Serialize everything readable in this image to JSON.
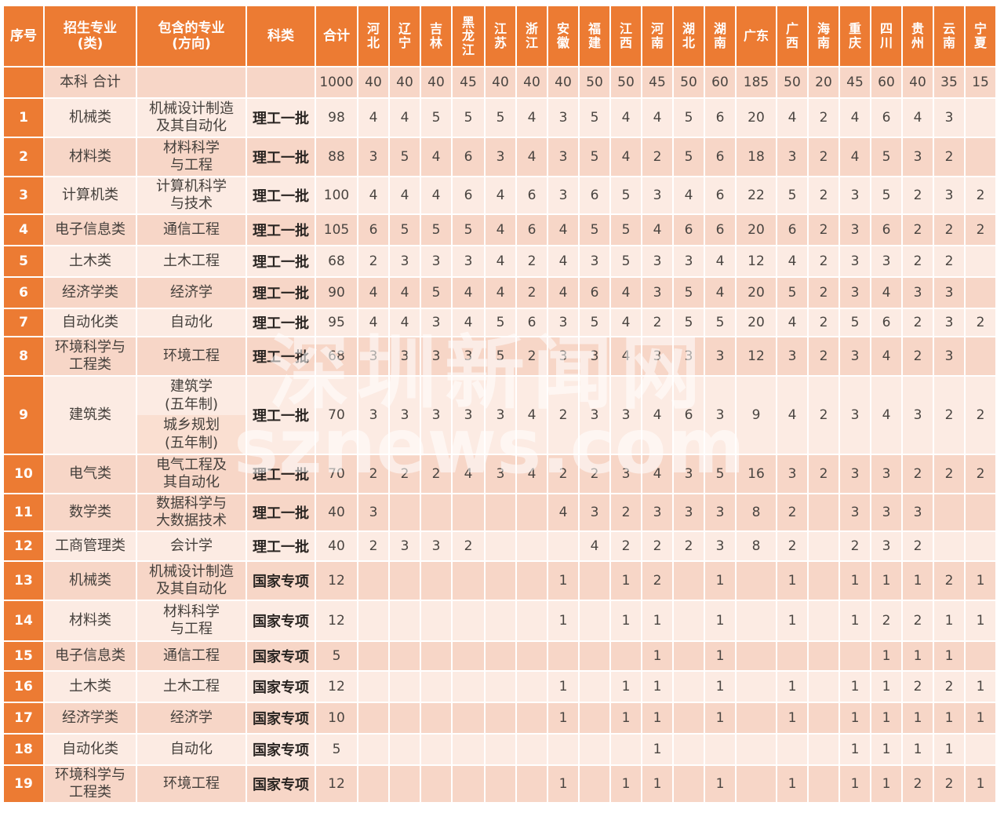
{
  "watermark": {
    "line1": "深圳新闻网",
    "line2": "sznews.com"
  },
  "table": {
    "columns": [
      {
        "key": "no",
        "label": "序号"
      },
      {
        "key": "major",
        "label": "招生专业\n(类)"
      },
      {
        "key": "sub",
        "label": "包含的专业\n(方向)"
      },
      {
        "key": "category",
        "label": "科类"
      },
      {
        "key": "total",
        "label": "合计"
      },
      {
        "key": "hebei",
        "label": "河\n北"
      },
      {
        "key": "liaoning",
        "label": "辽\n宁"
      },
      {
        "key": "jilin",
        "label": "吉\n林"
      },
      {
        "key": "heilongjiang",
        "label": "黑\n龙\n江"
      },
      {
        "key": "jiangsu",
        "label": "江\n苏"
      },
      {
        "key": "zhejiang",
        "label": "浙\n江"
      },
      {
        "key": "anhui",
        "label": "安\n徽"
      },
      {
        "key": "fujian",
        "label": "福\n建"
      },
      {
        "key": "jiangxi",
        "label": "江\n西"
      },
      {
        "key": "henan",
        "label": "河\n南"
      },
      {
        "key": "hubei",
        "label": "湖\n北"
      },
      {
        "key": "hunan",
        "label": "湖\n南"
      },
      {
        "key": "guangdong",
        "label": "广东"
      },
      {
        "key": "guangxi",
        "label": "广\n西"
      },
      {
        "key": "hainan",
        "label": "海\n南"
      },
      {
        "key": "chongqing",
        "label": "重\n庆"
      },
      {
        "key": "sichuan",
        "label": "四\n川"
      },
      {
        "key": "guizhou",
        "label": "贵\n州"
      },
      {
        "key": "yunnan",
        "label": "云\n南"
      },
      {
        "key": "ningxia",
        "label": "宁\n夏"
      }
    ],
    "summary": {
      "no": "",
      "major": "本科 合计",
      "sub": "",
      "category": "",
      "total": "1000",
      "values": [
        "40",
        "40",
        "40",
        "45",
        "40",
        "40",
        "40",
        "50",
        "50",
        "45",
        "50",
        "60",
        "185",
        "50",
        "20",
        "45",
        "60",
        "40",
        "35",
        "15"
      ]
    },
    "rows": [
      {
        "no": "1",
        "major": "机械类",
        "sub": "机械设计制造\n及其自动化",
        "category": "理工一批",
        "total": "98",
        "values": [
          "4",
          "4",
          "5",
          "5",
          "5",
          "4",
          "3",
          "5",
          "4",
          "4",
          "5",
          "6",
          "20",
          "4",
          "2",
          "4",
          "6",
          "4",
          "3",
          ""
        ]
      },
      {
        "no": "2",
        "major": "材料类",
        "sub": "材料科学\n与工程",
        "category": "理工一批",
        "total": "88",
        "values": [
          "3",
          "5",
          "4",
          "6",
          "3",
          "4",
          "3",
          "5",
          "4",
          "2",
          "5",
          "6",
          "18",
          "3",
          "2",
          "4",
          "5",
          "3",
          "2",
          ""
        ]
      },
      {
        "no": "3",
        "major": "计算机类",
        "sub": "计算机科学\n与技术",
        "category": "理工一批",
        "total": "100",
        "values": [
          "4",
          "4",
          "4",
          "6",
          "4",
          "6",
          "3",
          "6",
          "5",
          "3",
          "4",
          "6",
          "22",
          "5",
          "2",
          "3",
          "5",
          "2",
          "3",
          "2"
        ]
      },
      {
        "no": "4",
        "major": "电子信息类",
        "sub": "通信工程",
        "category": "理工一批",
        "total": "105",
        "values": [
          "6",
          "5",
          "5",
          "5",
          "4",
          "6",
          "4",
          "5",
          "5",
          "4",
          "6",
          "6",
          "20",
          "6",
          "2",
          "3",
          "6",
          "2",
          "2",
          "2"
        ]
      },
      {
        "no": "5",
        "major": "土木类",
        "sub": "土木工程",
        "category": "理工一批",
        "total": "68",
        "values": [
          "2",
          "3",
          "3",
          "3",
          "4",
          "2",
          "4",
          "3",
          "5",
          "3",
          "3",
          "4",
          "12",
          "4",
          "2",
          "3",
          "3",
          "2",
          "2",
          ""
        ]
      },
      {
        "no": "6",
        "major": "经济学类",
        "sub": "经济学",
        "category": "理工一批",
        "total": "90",
        "values": [
          "4",
          "4",
          "5",
          "4",
          "4",
          "2",
          "4",
          "6",
          "4",
          "3",
          "5",
          "4",
          "20",
          "5",
          "2",
          "3",
          "4",
          "3",
          "3",
          ""
        ]
      },
      {
        "no": "7",
        "major": "自动化类",
        "sub": "自动化",
        "category": "理工一批",
        "total": "95",
        "values": [
          "4",
          "4",
          "3",
          "4",
          "5",
          "6",
          "3",
          "5",
          "4",
          "2",
          "5",
          "5",
          "20",
          "4",
          "2",
          "5",
          "6",
          "2",
          "3",
          "2"
        ]
      },
      {
        "no": "8",
        "major": "环境科学与\n工程类",
        "sub": "环境工程",
        "category": "理工一批",
        "total": "68",
        "values": [
          "3",
          "3",
          "3",
          "3",
          "5",
          "2",
          "3",
          "3",
          "4",
          "3",
          "3",
          "3",
          "12",
          "3",
          "2",
          "3",
          "4",
          "2",
          "3",
          ""
        ]
      },
      {
        "no": "9",
        "major": "建筑类",
        "sub": "建筑学\n(五年制)",
        "sub2": "城乡规划\n(五年制)",
        "category": "理工一批",
        "total": "70",
        "values": [
          "3",
          "3",
          "3",
          "3",
          "3",
          "4",
          "2",
          "3",
          "3",
          "4",
          "6",
          "3",
          "9",
          "4",
          "2",
          "3",
          "4",
          "3",
          "2",
          "2"
        ]
      },
      {
        "no": "10",
        "major": "电气类",
        "sub": "电气工程及\n其自动化",
        "category": "理工一批",
        "total": "70",
        "values": [
          "2",
          "2",
          "2",
          "4",
          "3",
          "4",
          "2",
          "2",
          "3",
          "4",
          "3",
          "5",
          "16",
          "3",
          "2",
          "3",
          "3",
          "2",
          "2",
          "2"
        ]
      },
      {
        "no": "11",
        "major": "数学类",
        "sub": "数据科学与\n大数据技术",
        "category": "理工一批",
        "total": "40",
        "values": [
          "3",
          "",
          "",
          "",
          "",
          "",
          "4",
          "3",
          "2",
          "3",
          "3",
          "3",
          "8",
          "2",
          "",
          "3",
          "3",
          "3",
          "",
          ""
        ]
      },
      {
        "no": "12",
        "major": "工商管理类",
        "sub": "会计学",
        "category": "理工一批",
        "total": "40",
        "values": [
          "2",
          "3",
          "3",
          "2",
          "",
          "",
          "",
          "4",
          "2",
          "2",
          "2",
          "3",
          "8",
          "2",
          "",
          "2",
          "3",
          "2",
          "",
          ""
        ]
      },
      {
        "no": "13",
        "major": "机械类",
        "sub": "机械设计制造\n及其自动化",
        "category": "国家专项",
        "total": "12",
        "values": [
          "",
          "",
          "",
          "",
          "",
          "",
          "1",
          "",
          "1",
          "2",
          "",
          "1",
          "",
          "1",
          "",
          "1",
          "1",
          "1",
          "2",
          "1"
        ]
      },
      {
        "no": "14",
        "major": "材料类",
        "sub": "材料科学\n与工程",
        "category": "国家专项",
        "total": "12",
        "values": [
          "",
          "",
          "",
          "",
          "",
          "",
          "1",
          "",
          "1",
          "1",
          "",
          "1",
          "",
          "1",
          "",
          "1",
          "2",
          "2",
          "1",
          "1"
        ]
      },
      {
        "no": "15",
        "major": "电子信息类",
        "sub": "通信工程",
        "category": "国家专项",
        "total": "5",
        "values": [
          "",
          "",
          "",
          "",
          "",
          "",
          "",
          "",
          "",
          "1",
          "",
          "1",
          "",
          "",
          "",
          "",
          "1",
          "1",
          "1",
          ""
        ]
      },
      {
        "no": "16",
        "major": "土木类",
        "sub": "土木工程",
        "category": "国家专项",
        "total": "12",
        "values": [
          "",
          "",
          "",
          "",
          "",
          "",
          "1",
          "",
          "1",
          "1",
          "",
          "1",
          "",
          "1",
          "",
          "1",
          "1",
          "2",
          "2",
          "1"
        ]
      },
      {
        "no": "17",
        "major": "经济学类",
        "sub": "经济学",
        "category": "国家专项",
        "total": "10",
        "values": [
          "",
          "",
          "",
          "",
          "",
          "",
          "1",
          "",
          "1",
          "1",
          "",
          "1",
          "",
          "1",
          "",
          "1",
          "1",
          "1",
          "1",
          "1"
        ]
      },
      {
        "no": "18",
        "major": "自动化类",
        "sub": "自动化",
        "category": "国家专项",
        "total": "5",
        "values": [
          "",
          "",
          "",
          "",
          "",
          "",
          "",
          "",
          "",
          "1",
          "",
          "",
          "",
          "",
          "",
          "1",
          "1",
          "1",
          "1",
          ""
        ]
      },
      {
        "no": "19",
        "major": "环境科学与\n工程类",
        "sub": "环境工程",
        "category": "国家专项",
        "total": "12",
        "values": [
          "",
          "",
          "",
          "",
          "",
          "",
          "1",
          "",
          "1",
          "1",
          "",
          "1",
          "",
          "1",
          "",
          "1",
          "1",
          "2",
          "2",
          "1"
        ]
      }
    ]
  },
  "colors": {
    "header_orange": "#ec7b33",
    "row_light": "#fcebe3",
    "row_dark": "#f7d6c7",
    "grid_white": "#ffffff"
  }
}
